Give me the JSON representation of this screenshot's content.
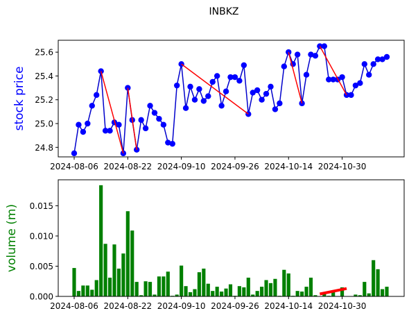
{
  "chart_data": [
    {
      "type": "line",
      "title": "INBKZ",
      "ylabel": "stock price",
      "ylabel_color": "#0000ff",
      "xlabel": "",
      "ylim": [
        24.72,
        25.7
      ],
      "yticks": [
        "24.8",
        "25.0",
        "25.2",
        "25.4",
        "25.6"
      ],
      "ytick_values": [
        24.8,
        25.0,
        25.2,
        25.4,
        25.6
      ],
      "xticks": [
        "2024-08-06",
        "2024-08-22",
        "2024-09-10",
        "2024-09-26",
        "2024-10-14",
        "2024-10-30"
      ],
      "xtick_index": [
        0,
        12,
        24,
        36,
        48,
        60
      ],
      "line_color": "#0000cc",
      "marker_color": "#0000ff",
      "overlay_color": "#ff0000",
      "grid": false,
      "series": [
        {
          "values": [
            24.75,
            24.99,
            24.93,
            25.0,
            25.15,
            25.24,
            25.44,
            24.94,
            24.94,
            25.01,
            24.99,
            24.75,
            25.3,
            25.03,
            24.78,
            25.03,
            24.96,
            25.15,
            25.09,
            25.04,
            24.99,
            24.84,
            24.83,
            25.32,
            25.5,
            25.13,
            25.31,
            25.2,
            25.29,
            25.19,
            25.23,
            25.35,
            25.4,
            25.15,
            25.27,
            25.39,
            25.39,
            25.36,
            25.49,
            25.08,
            25.26,
            25.28,
            25.2,
            25.25,
            25.31,
            25.12,
            25.17,
            25.48,
            25.6,
            25.5,
            25.58,
            25.17,
            25.41,
            25.58,
            25.57,
            25.65,
            25.65,
            25.37,
            25.37,
            25.37,
            25.39,
            25.24,
            25.24,
            25.32,
            25.34,
            25.5,
            25.41,
            25.5,
            25.54,
            25.54,
            25.56
          ]
        }
      ],
      "overlay_segments": [
        [
          6,
          11
        ],
        [
          12,
          14
        ],
        [
          24,
          39
        ],
        [
          48,
          51
        ],
        [
          55,
          61
        ]
      ]
    },
    {
      "type": "bar",
      "ylabel": "volume (m)",
      "ylabel_color": "#008000",
      "xlabel": "",
      "ylim": [
        0,
        0.0193
      ],
      "yticks": [
        "0.000",
        "0.005",
        "0.010",
        "0.015"
      ],
      "ytick_values": [
        0,
        0.005,
        0.01,
        0.015
      ],
      "xticks": [
        "2024-08-06",
        "2024-08-22",
        "2024-09-10",
        "2024-09-26",
        "2024-10-14",
        "2024-10-30"
      ],
      "xtick_index": [
        0,
        12,
        24,
        36,
        48,
        60
      ],
      "bar_color": "#008000",
      "overlay_color": "#ff0000",
      "grid": false,
      "series": [
        {
          "values": [
            0.0047,
            0.0009,
            0.0018,
            0.0018,
            0.0011,
            0.0027,
            0.0184,
            0.0087,
            0.0031,
            0.0086,
            0.0046,
            0.0071,
            0.0141,
            0.0109,
            0.0024,
            0.0002,
            0.0025,
            0.0024,
            0.0003,
            0.0033,
            0.0033,
            0.0041,
            0.0001,
            0.0003,
            0.0051,
            0.0017,
            0.0007,
            0.0012,
            0.004,
            0.0046,
            0.0021,
            0.0009,
            0.0016,
            0.0008,
            0.0013,
            0.002,
            0.0001,
            0.0017,
            0.0015,
            0.0031,
            0.0003,
            0.0009,
            0.0016,
            0.0027,
            0.0022,
            0.0029,
            0.0001,
            0.0044,
            0.0038,
            0.0001,
            0.0009,
            0.0008,
            0.0016,
            0.0031,
            0.0002,
            0.0,
            0.0004,
            0.0001,
            0.0008,
            0.0,
            0.0015,
            0.0,
            0.0,
            0.0003,
            0.0002,
            0.0024,
            0.0005,
            0.006,
            0.0045,
            0.0012,
            0.0016
          ]
        }
      ],
      "overlay_line": {
        "from_index": 55,
        "from_value": 0.0004,
        "to_index": 61,
        "to_value": 0.0013
      }
    }
  ]
}
